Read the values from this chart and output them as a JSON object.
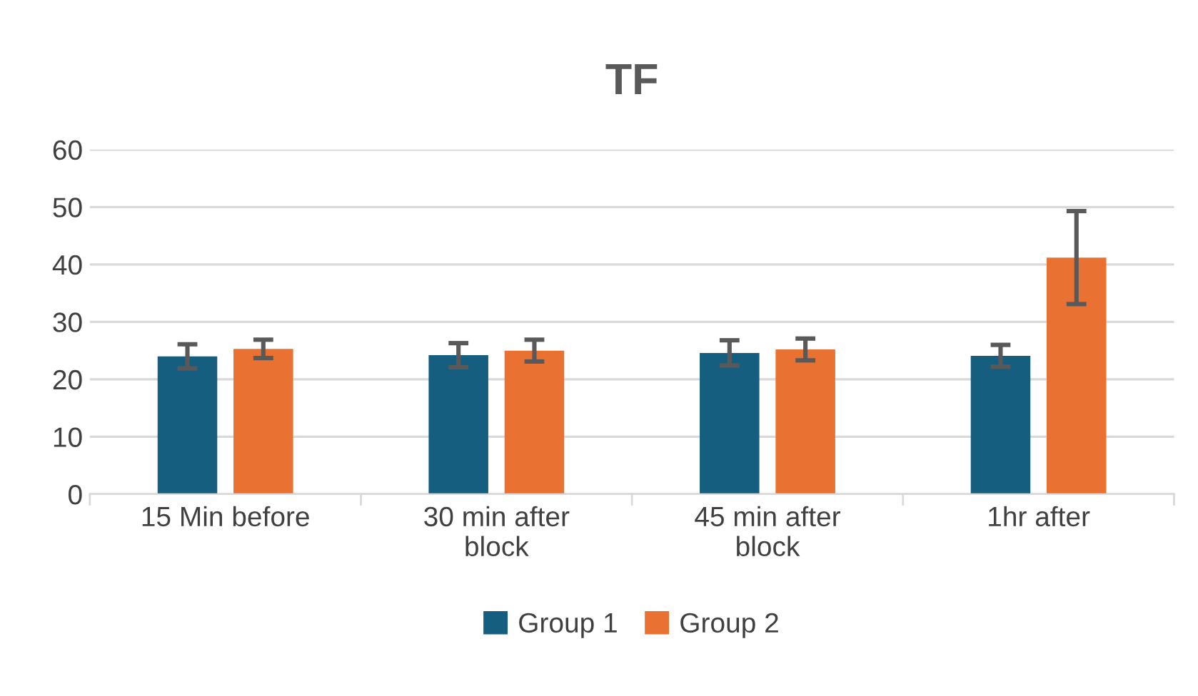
{
  "chart_data": {
    "type": "bar",
    "title": "TF",
    "categories": [
      "15 Min before",
      "30 min after\nblock",
      "45 min after\nblock",
      "1hr after"
    ],
    "series": [
      {
        "name": "Group 1",
        "color": "#165e80",
        "values": [
          24.0,
          24.2,
          24.6,
          24.1
        ],
        "errors": [
          2.1,
          2.1,
          2.2,
          1.9
        ]
      },
      {
        "name": "Group 2",
        "color": "#e97132",
        "values": [
          25.3,
          25.0,
          25.2,
          41.2
        ],
        "errors": [
          1.6,
          1.9,
          1.9,
          8.1
        ]
      }
    ],
    "ylim": [
      0,
      60
    ],
    "yticks": [
      0,
      10,
      20,
      30,
      40,
      50,
      60
    ],
    "grid": "y",
    "legend": "bottom"
  }
}
